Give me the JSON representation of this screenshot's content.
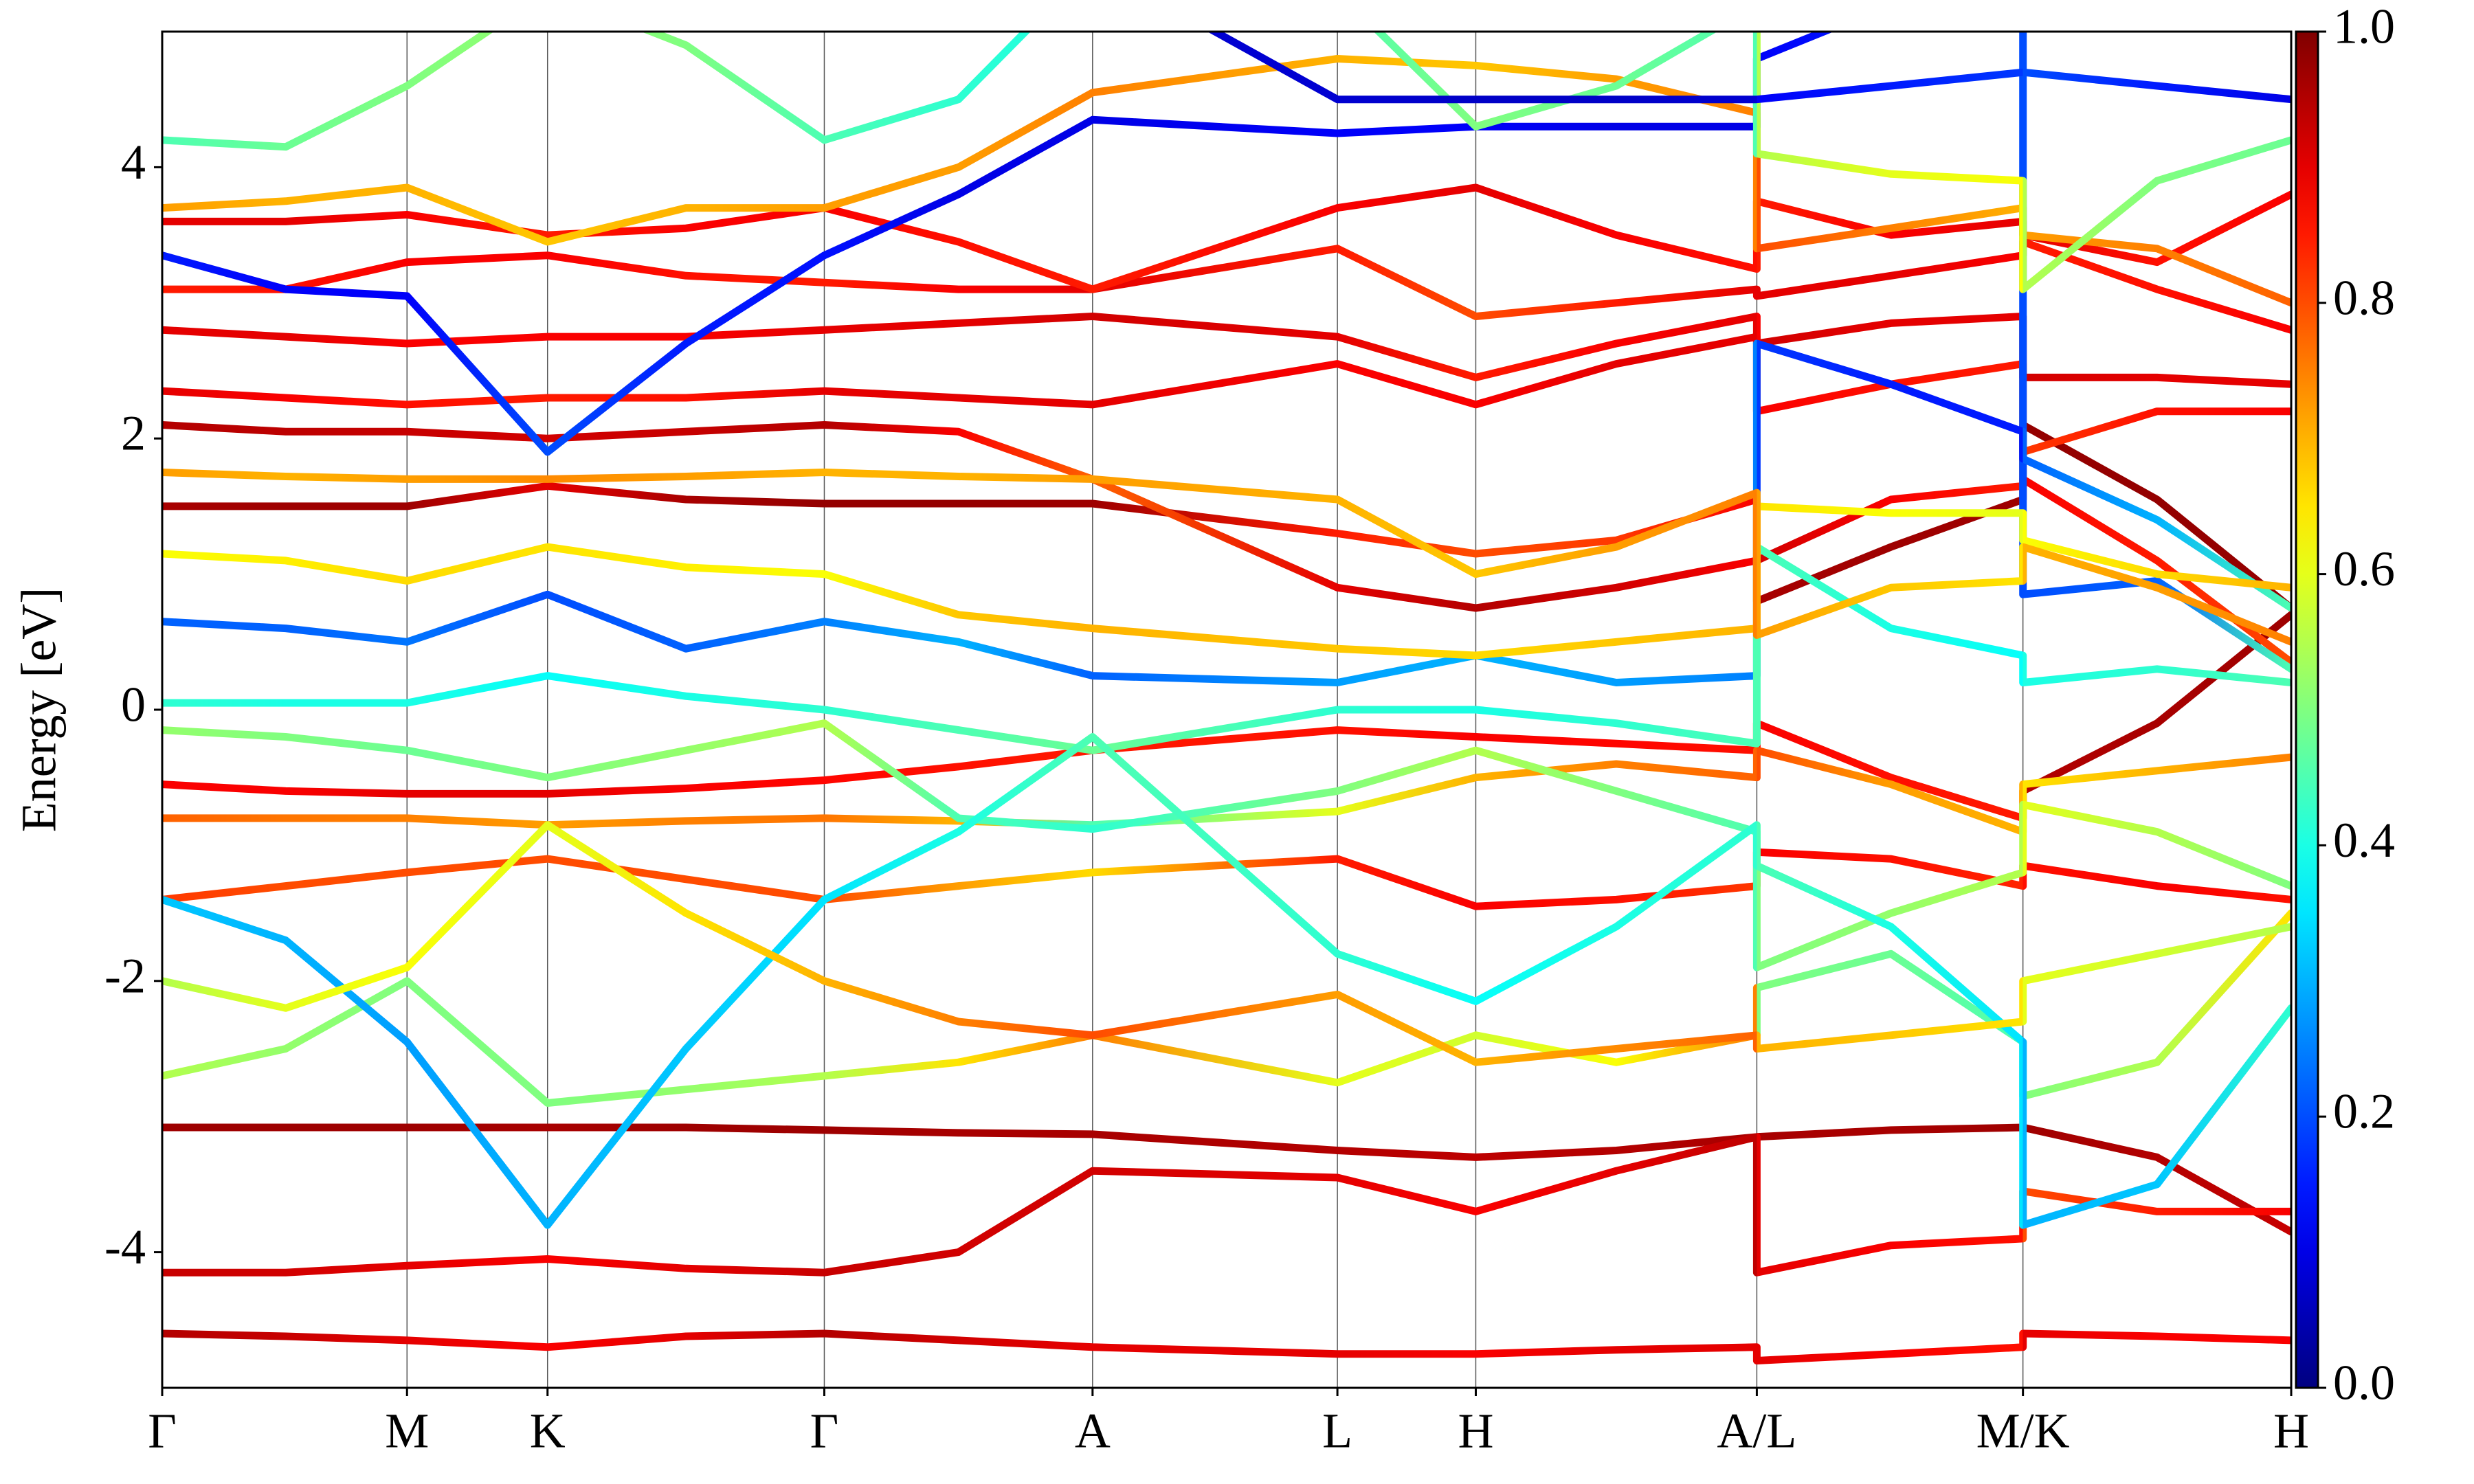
{
  "chart_data": {
    "type": "line",
    "ylabel": "Energy [eV]",
    "xlim": [
      0,
      1
    ],
    "ylim": [
      -5,
      5
    ],
    "xticks": [
      {
        "value": 0,
        "label": "Γ"
      },
      {
        "value": 0.115,
        "label": "M"
      },
      {
        "value": 0.181,
        "label": "K"
      },
      {
        "value": 0.311,
        "label": "Γ"
      },
      {
        "value": 0.437,
        "label": "A"
      },
      {
        "value": 0.552,
        "label": "L"
      },
      {
        "value": 0.617,
        "label": "H"
      },
      {
        "value": 0.749,
        "label": "A/L"
      },
      {
        "value": 0.874,
        "label": "M/K"
      },
      {
        "value": 1,
        "label": "H"
      }
    ],
    "yticks": [
      -4,
      -2,
      0,
      2,
      4
    ],
    "colormap": "jet",
    "clim": [
      0,
      1
    ],
    "cticks": [
      {
        "value": 0,
        "label": "0.0"
      },
      {
        "value": 0.2,
        "label": "0.2"
      },
      {
        "value": 0.4,
        "label": "0.4"
      },
      {
        "value": 0.6,
        "label": "0.6"
      },
      {
        "value": 0.8,
        "label": "0.8"
      },
      {
        "value": 1,
        "label": "1.0"
      }
    ],
    "x": [
      0,
      0.058,
      0.115,
      0.181,
      0.246,
      0.311,
      0.374,
      0.437,
      0.552,
      0.617,
      0.683,
      0.749,
      0.749,
      0.812,
      0.874,
      0.874,
      0.937,
      1
    ],
    "series": [
      {
        "values": [
          -3.08,
          -3.08,
          -3.08,
          -3.08,
          -3.08,
          -3.1,
          -3.12,
          -3.13,
          -3.25,
          -3.3,
          -3.25,
          -3.15,
          -3.15,
          -3.1,
          -3.08,
          -3.08,
          -3.3,
          -3.85
        ],
        "weights": [
          0.97,
          0.97,
          0.97,
          0.96,
          0.97,
          0.97,
          0.96,
          0.96,
          0.95,
          0.94,
          0.95,
          0.96,
          0.96,
          0.96,
          0.97,
          0.97,
          0.95,
          0.93
        ]
      },
      {
        "values": [
          -4.15,
          -4.15,
          -4.1,
          -4.05,
          -4.12,
          -4.15,
          -4.0,
          -3.4,
          -3.45,
          -3.7,
          -3.4,
          -3.15,
          -4.15,
          -3.95,
          -3.9,
          -3.55,
          -3.7,
          -3.7
        ],
        "weights": [
          0.93,
          0.92,
          0.9,
          0.88,
          0.9,
          0.93,
          0.92,
          0.92,
          0.9,
          0.88,
          0.9,
          0.94,
          0.9,
          0.88,
          0.86,
          0.8,
          0.85,
          0.88
        ]
      },
      {
        "values": [
          -4.6,
          -4.62,
          -4.65,
          -4.7,
          -4.62,
          -4.6,
          -4.65,
          -4.7,
          -4.75,
          -4.75,
          -4.72,
          -4.7,
          -4.8,
          -4.75,
          -4.7,
          -4.6,
          -4.62,
          -4.65
        ],
        "weights": [
          0.95,
          0.93,
          0.9,
          0.88,
          0.9,
          0.95,
          0.92,
          0.9,
          0.9,
          0.88,
          0.9,
          0.9,
          0.9,
          0.88,
          0.86,
          0.9,
          0.88,
          0.88
        ]
      },
      {
        "values": [
          -0.55,
          -0.6,
          -0.62,
          -0.62,
          -0.58,
          -0.52,
          -0.42,
          -0.3,
          -0.15,
          -0.2,
          -0.25,
          -0.3,
          -0.1,
          -0.5,
          -0.8,
          -0.6,
          -0.1,
          0.7
        ],
        "weights": [
          0.88,
          0.88,
          0.9,
          0.9,
          0.88,
          0.87,
          0.86,
          0.85,
          0.86,
          0.88,
          0.87,
          0.86,
          0.88,
          0.86,
          0.85,
          0.95,
          0.96,
          0.97
        ]
      },
      {
        "values": [
          -0.8,
          -0.8,
          -0.8,
          -0.85,
          -0.82,
          -0.8,
          -0.82,
          -0.85,
          -0.75,
          -0.5,
          -0.4,
          -0.5,
          -0.3,
          -0.55,
          -0.9,
          -0.55,
          -0.45,
          -0.35
        ],
        "weights": [
          0.78,
          0.76,
          0.75,
          0.72,
          0.75,
          0.76,
          0.7,
          0.45,
          0.6,
          0.7,
          0.75,
          0.78,
          0.8,
          0.72,
          0.7,
          0.65,
          0.7,
          0.75
        ]
      },
      {
        "values": [
          -1.4,
          -1.3,
          -1.2,
          -1.1,
          -1.25,
          -1.4,
          -1.3,
          -1.2,
          -1.1,
          -1.45,
          -1.4,
          -1.3,
          -1.05,
          -1.1,
          -1.3,
          -1.15,
          -1.3,
          -1.4
        ],
        "weights": [
          0.82,
          0.8,
          0.8,
          0.8,
          0.8,
          0.8,
          0.72,
          0.66,
          0.85,
          0.88,
          0.86,
          0.82,
          0.88,
          0.86,
          0.84,
          0.86,
          0.88,
          0.86
        ]
      },
      {
        "values": [
          1.5,
          1.5,
          1.5,
          1.65,
          1.55,
          1.52,
          1.52,
          1.52,
          1.3,
          1.15,
          1.25,
          1.55,
          0.8,
          1.2,
          1.55,
          2.1,
          1.55,
          0.75
        ],
        "weights": [
          0.96,
          0.97,
          0.97,
          0.9,
          0.96,
          0.98,
          0.98,
          0.97,
          0.85,
          0.8,
          0.82,
          0.88,
          0.96,
          0.97,
          0.97,
          0.98,
          0.98,
          0.98
        ]
      },
      {
        "values": [
          2.1,
          2.05,
          2.05,
          2.0,
          2.05,
          2.1,
          2.05,
          1.7,
          0.9,
          0.75,
          0.9,
          1.1,
          1.1,
          1.55,
          1.65,
          1.7,
          1.1,
          0.35
        ],
        "weights": [
          0.95,
          0.94,
          0.93,
          0.92,
          0.93,
          0.95,
          0.88,
          0.78,
          0.9,
          0.95,
          0.92,
          0.88,
          0.92,
          0.88,
          0.85,
          0.88,
          0.85,
          0.8
        ]
      },
      {
        "values": [
          2.35,
          2.3,
          2.25,
          2.3,
          2.3,
          2.35,
          2.3,
          2.25,
          2.55,
          2.25,
          2.55,
          2.75,
          2.7,
          2.85,
          2.9,
          2.45,
          2.45,
          2.4
        ],
        "weights": [
          0.9,
          0.88,
          0.86,
          0.85,
          0.86,
          0.9,
          0.9,
          0.9,
          0.88,
          0.88,
          0.9,
          0.9,
          0.92,
          0.9,
          0.9,
          0.92,
          0.9,
          0.9
        ]
      },
      {
        "values": [
          2.8,
          2.75,
          2.7,
          2.75,
          2.75,
          2.8,
          2.85,
          2.9,
          2.75,
          2.45,
          2.7,
          2.9,
          2.2,
          2.4,
          2.55,
          1.9,
          2.2,
          2.2
        ],
        "weights": [
          0.9,
          0.9,
          0.88,
          0.88,
          0.88,
          0.9,
          0.9,
          0.92,
          0.9,
          0.85,
          0.88,
          0.9,
          0.88,
          0.86,
          0.85,
          0.82,
          0.86,
          0.88
        ]
      },
      {
        "values": [
          3.1,
          3.1,
          3.3,
          3.35,
          3.2,
          3.15,
          3.1,
          3.1,
          3.4,
          2.9,
          3.0,
          3.1,
          3.05,
          3.2,
          3.35,
          3.45,
          3.1,
          2.8
        ],
        "weights": [
          0.85,
          0.86,
          0.88,
          0.88,
          0.86,
          0.85,
          0.88,
          0.9,
          0.85,
          0.8,
          0.85,
          0.9,
          0.9,
          0.9,
          0.88,
          0.85,
          0.86,
          0.88
        ]
      },
      {
        "values": [
          3.6,
          3.6,
          3.65,
          3.5,
          3.55,
          3.7,
          3.45,
          3.1,
          3.7,
          3.85,
          3.5,
          3.25,
          3.75,
          3.5,
          3.6,
          3.5,
          3.3,
          3.8
        ],
        "weights": [
          0.9,
          0.9,
          0.88,
          0.85,
          0.88,
          0.88,
          0.86,
          0.85,
          0.88,
          0.9,
          0.88,
          0.86,
          0.85,
          0.88,
          0.9,
          0.9,
          0.86,
          0.88
        ]
      },
      {
        "values": [
          3.7,
          3.75,
          3.85,
          3.45,
          3.7,
          3.7,
          4.0,
          4.55,
          4.8,
          4.75,
          4.65,
          4.4,
          3.4,
          3.55,
          3.7,
          3.5,
          3.4,
          3.0
        ],
        "weights": [
          0.72,
          0.7,
          0.7,
          0.68,
          0.7,
          0.72,
          0.72,
          0.75,
          0.7,
          0.68,
          0.72,
          0.75,
          0.8,
          0.75,
          0.7,
          0.72,
          0.75,
          0.78
        ]
      },
      {
        "values": [
          3.35,
          3.1,
          3.05,
          1.9,
          2.7,
          3.35,
          3.8,
          4.35,
          4.25,
          4.3,
          4.3,
          4.3,
          4.8,
          5.2,
          5.5,
          0.85,
          0.95,
          0.3
        ],
        "weights": [
          0.15,
          0.12,
          0.12,
          0.2,
          0.15,
          0.14,
          0.1,
          0.1,
          0.12,
          0.12,
          0.1,
          0.1,
          0.12,
          0.15,
          0.2,
          0.2,
          0.22,
          0.45
        ]
      },
      {
        "values": [
          0.65,
          0.6,
          0.5,
          0.85,
          0.45,
          0.65,
          0.5,
          0.25,
          0.2,
          0.4,
          0.2,
          0.25,
          2.7,
          2.4,
          2.05,
          1.85,
          1.4,
          0.75
        ],
        "weights": [
          0.22,
          0.22,
          0.24,
          0.2,
          0.22,
          0.25,
          0.3,
          0.22,
          0.28,
          0.3,
          0.28,
          0.25,
          0.18,
          0.15,
          0.15,
          0.22,
          0.3,
          0.45
        ]
      },
      {
        "values": [
          0.05,
          0.05,
          0.05,
          0.25,
          0.1,
          0.0,
          -0.15,
          -0.3,
          0.0,
          0.0,
          -0.1,
          -0.25,
          1.2,
          0.6,
          0.4,
          0.2,
          0.3,
          0.2
        ],
        "weights": [
          0.42,
          0.4,
          0.4,
          0.38,
          0.4,
          0.42,
          0.45,
          0.48,
          0.42,
          0.4,
          0.42,
          0.45,
          0.45,
          0.4,
          0.38,
          0.4,
          0.42,
          0.45
        ]
      },
      {
        "values": [
          -0.15,
          -0.2,
          -0.3,
          -0.5,
          -0.3,
          -0.1,
          -0.8,
          -0.88,
          -0.6,
          -0.3,
          -0.6,
          -0.9,
          -1.9,
          -1.5,
          -1.2,
          -0.7,
          -0.9,
          -1.3
        ],
        "weights": [
          0.52,
          0.5,
          0.48,
          0.5,
          0.52,
          0.55,
          0.45,
          0.42,
          0.5,
          0.55,
          0.5,
          0.45,
          0.5,
          0.52,
          0.55,
          0.6,
          0.55,
          0.5
        ]
      },
      {
        "values": [
          1.15,
          1.1,
          0.95,
          1.2,
          1.05,
          1.0,
          0.7,
          0.6,
          0.45,
          0.4,
          0.5,
          0.6,
          1.5,
          1.45,
          1.45,
          1.25,
          1.0,
          0.9
        ],
        "weights": [
          0.62,
          0.64,
          0.66,
          0.65,
          0.64,
          0.62,
          0.68,
          0.7,
          0.68,
          0.66,
          0.68,
          0.7,
          0.65,
          0.62,
          0.6,
          0.62,
          0.66,
          0.7
        ]
      },
      {
        "values": [
          -2.7,
          -2.5,
          -2.0,
          -2.9,
          -2.8,
          -2.7,
          -2.6,
          -2.4,
          -2.75,
          -2.4,
          -2.6,
          -2.4,
          -2.05,
          -1.8,
          -2.45,
          -2.85,
          -2.6,
          -1.5
        ],
        "weights": [
          0.55,
          0.52,
          0.5,
          0.5,
          0.52,
          0.55,
          0.65,
          0.75,
          0.6,
          0.58,
          0.62,
          0.75,
          0.5,
          0.48,
          0.45,
          0.5,
          0.55,
          0.65
        ]
      },
      {
        "values": [
          -1.4,
          -1.7,
          -2.45,
          -3.8,
          -2.5,
          -1.4,
          -0.9,
          -0.2,
          -1.8,
          -2.15,
          -1.6,
          -0.85,
          -1.15,
          -1.6,
          -2.45,
          -3.8,
          -3.5,
          -2.2
        ],
        "weights": [
          0.32,
          0.3,
          0.28,
          0.3,
          0.32,
          0.35,
          0.4,
          0.45,
          0.42,
          0.38,
          0.4,
          0.42,
          0.45,
          0.4,
          0.35,
          0.3,
          0.32,
          0.42
        ]
      },
      {
        "values": [
          1.75,
          1.72,
          1.7,
          1.7,
          1.72,
          1.75,
          1.72,
          1.7,
          1.55,
          1.0,
          1.2,
          1.6,
          0.55,
          0.9,
          0.95,
          1.2,
          0.9,
          0.5
        ],
        "weights": [
          0.72,
          0.7,
          0.72,
          0.74,
          0.72,
          0.7,
          0.7,
          0.72,
          0.7,
          0.68,
          0.72,
          0.75,
          0.72,
          0.68,
          0.65,
          0.7,
          0.72,
          0.75
        ]
      },
      {
        "values": [
          4.2,
          4.15,
          4.6,
          5.3,
          4.9,
          4.2,
          4.5,
          5.5,
          5.3,
          4.3,
          4.6,
          5.2,
          4.1,
          3.95,
          3.9,
          3.1,
          3.9,
          4.2
        ],
        "weights": [
          0.45,
          0.48,
          0.5,
          0.52,
          0.5,
          0.45,
          0.42,
          0.4,
          0.45,
          0.5,
          0.48,
          0.45,
          0.55,
          0.6,
          0.62,
          0.55,
          0.5,
          0.48
        ]
      },
      {
        "values": [
          -2.0,
          -2.2,
          -1.9,
          -0.85,
          -1.5,
          -2.0,
          -2.3,
          -2.4,
          -2.1,
          -2.6,
          -2.5,
          -2.4,
          -2.5,
          -2.4,
          -2.3,
          -2.0,
          -1.8,
          -1.6
        ],
        "weights": [
          0.55,
          0.6,
          0.62,
          0.6,
          0.65,
          0.7,
          0.75,
          0.8,
          0.72,
          0.7,
          0.74,
          0.78,
          0.7,
          0.68,
          0.65,
          0.6,
          0.58,
          0.55
        ]
      },
      {
        "values": [
          5.5,
          5.5,
          5.5,
          5.5,
          5.5,
          5.5,
          5.5,
          5.5,
          4.5,
          4.5,
          4.5,
          4.5,
          4.5,
          4.6,
          4.7,
          4.7,
          4.6,
          4.5
        ],
        "weights": [
          0.08,
          0.08,
          0.08,
          0.08,
          0.08,
          0.08,
          0.08,
          0.08,
          0.08,
          0.07,
          0.07,
          0.08,
          0.12,
          0.15,
          0.18,
          0.2,
          0.15,
          0.1
        ]
      }
    ]
  }
}
